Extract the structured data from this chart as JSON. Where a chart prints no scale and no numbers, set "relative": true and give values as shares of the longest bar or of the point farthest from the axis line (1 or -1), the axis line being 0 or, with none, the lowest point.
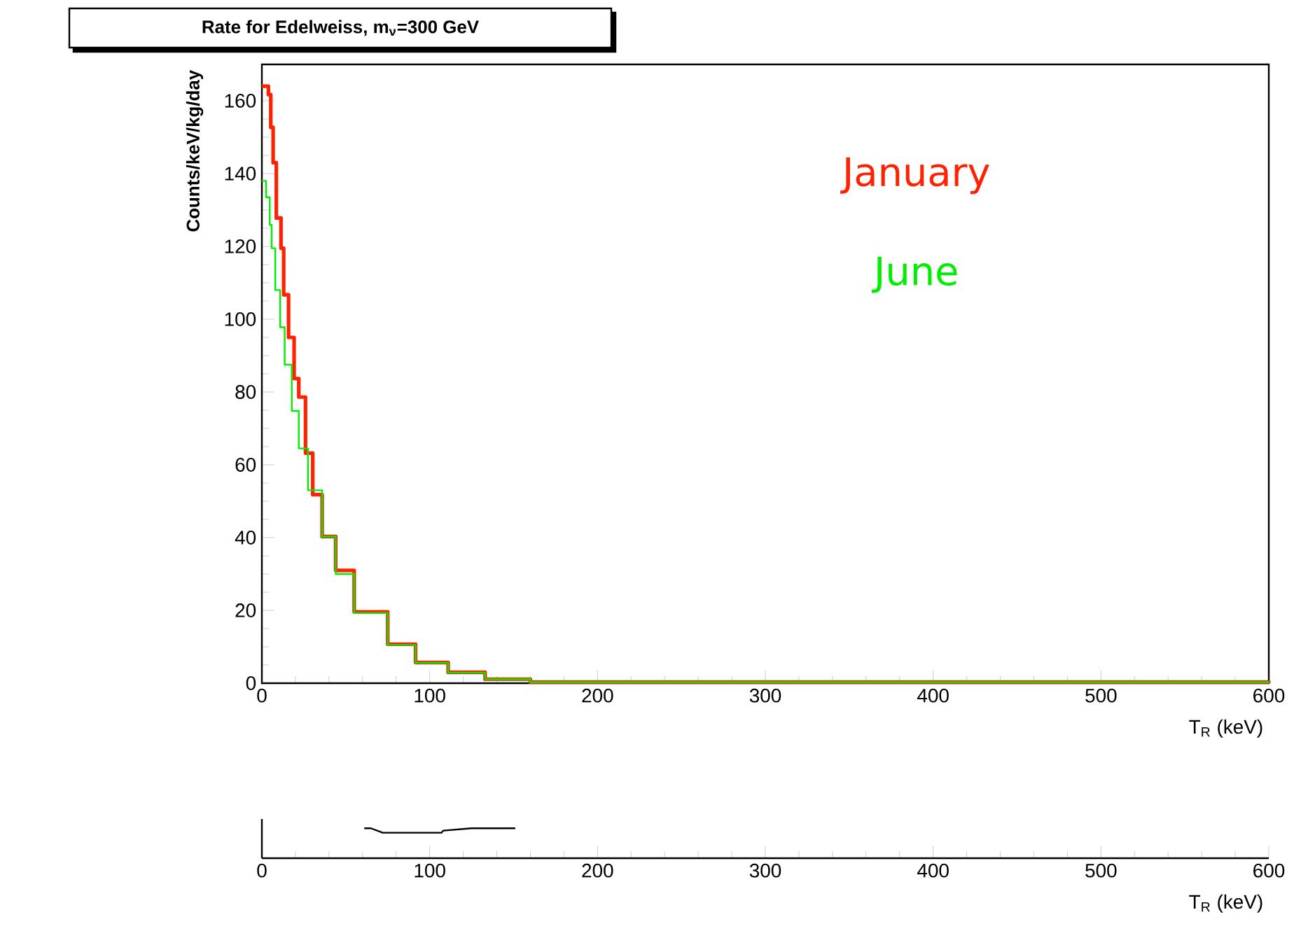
{
  "chart_data": [
    {
      "type": "step",
      "title": "Rate for Edelweiss, m$_{ν}$=300 GeV",
      "xlabel": "T$_{R}$ (keV)",
      "ylabel": "Counts/keV/kg/day",
      "xlim": [
        0,
        600
      ],
      "xticks": [
        0,
        100,
        200,
        300,
        400,
        500,
        600
      ],
      "ylim": [
        0,
        170
      ],
      "yticks": [
        0,
        20,
        40,
        60,
        80,
        100,
        120,
        140,
        160
      ],
      "series": [
        {
          "name": "January",
          "color": "#ff2200",
          "x": [
            0,
            3.9,
            5.3,
            6.7,
            8.6,
            11.4,
            13,
            15.9,
            19.2,
            22,
            26,
            30.3,
            35.9,
            44,
            55,
            75,
            91.6,
            111,
            133,
            160,
            600
          ],
          "values": [
            164,
            161.7,
            152.7,
            143,
            127.8,
            119.5,
            106.7,
            95,
            83.7,
            78.6,
            63.2,
            51.8,
            40.3,
            31,
            19.6,
            10.7,
            5.7,
            3,
            1.1,
            0.3,
            0
          ]
        },
        {
          "name": "June",
          "color": "#00ee00",
          "x": [
            0,
            2.5,
            4.7,
            5.8,
            8,
            10.9,
            13.6,
            17.8,
            22,
            27.5,
            35.9,
            44,
            55,
            75,
            91.6,
            111,
            133,
            160,
            600
          ],
          "values": [
            138,
            133.5,
            125.9,
            119.5,
            108,
            97.8,
            87.5,
            74.8,
            64.5,
            53,
            40.3,
            30,
            19.3,
            10.5,
            5.6,
            2.9,
            1.1,
            0.3,
            0
          ]
        }
      ]
    },
    {
      "type": "line",
      "relative": true,
      "tick_labels": "x",
      "xlabel": "T$_{R}$ (keV)",
      "xlim": [
        0,
        600
      ],
      "xticks": [
        0,
        100,
        200,
        300,
        400,
        500,
        600
      ],
      "series": [
        {
          "color": "#000000",
          "x": [
            61,
            65,
            72,
            107,
            108,
            125,
            151
          ],
          "values": [
            1,
            1,
            0.85,
            0.85,
            0.92,
            1,
            1
          ]
        }
      ]
    }
  ]
}
